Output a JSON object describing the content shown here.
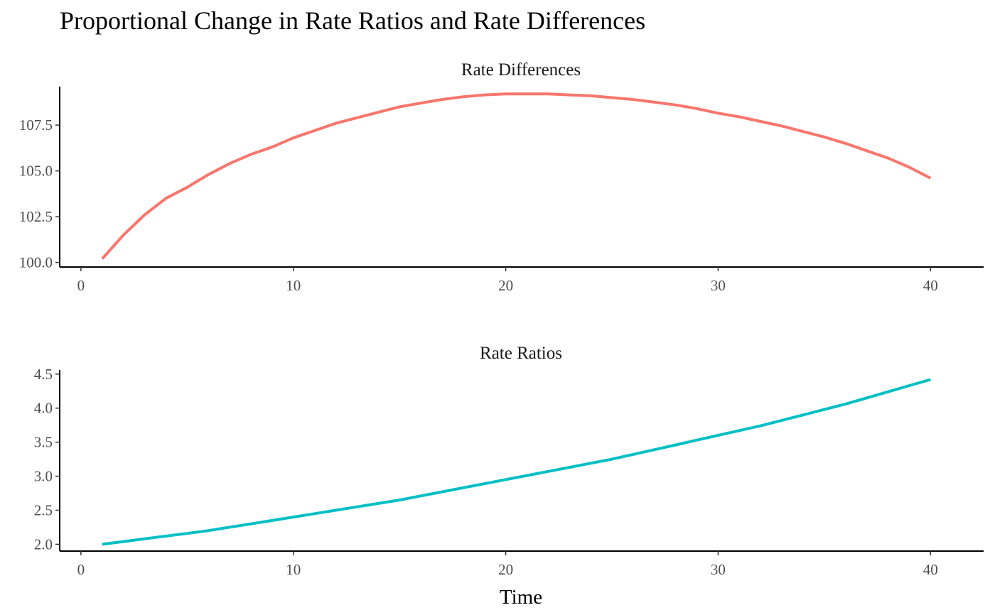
{
  "title": "Proportional Change in Rate Ratios and Rate Differences",
  "chart_data": [
    {
      "type": "line",
      "panel_title": "Rate Differences",
      "xlabel": "",
      "ylabel": "",
      "xlim": [
        -1,
        42.5
      ],
      "ylim": [
        99.75,
        109.6
      ],
      "x_ticks": [
        0,
        10,
        20,
        30,
        40
      ],
      "y_ticks": [
        100.0,
        102.5,
        105.0,
        107.5
      ],
      "y_tick_labels": [
        "100.0",
        "102.5",
        "105.0",
        "107.5"
      ],
      "grid": false,
      "series": [
        {
          "color": "#F8766D",
          "x": [
            1,
            2,
            3,
            4,
            5,
            6,
            7,
            8,
            9,
            10,
            11,
            12,
            13,
            14,
            15,
            16,
            17,
            18,
            19,
            20,
            21,
            22,
            23,
            24,
            25,
            26,
            27,
            28,
            29,
            30,
            31,
            32,
            33,
            34,
            35,
            36,
            37,
            38,
            39,
            40
          ],
          "y": [
            100.2,
            101.5,
            102.6,
            103.5,
            104.1,
            104.8,
            105.4,
            105.9,
            106.3,
            106.8,
            107.2,
            107.6,
            107.9,
            108.2,
            108.5,
            108.7,
            108.9,
            109.05,
            109.15,
            109.2,
            109.2,
            109.2,
            109.15,
            109.1,
            109.0,
            108.9,
            108.75,
            108.6,
            108.4,
            108.15,
            107.95,
            107.7,
            107.45,
            107.15,
            106.85,
            106.5,
            106.1,
            105.7,
            105.2,
            104.6
          ]
        }
      ]
    },
    {
      "type": "line",
      "panel_title": "Rate Ratios",
      "xlabel": "Time",
      "ylabel": "",
      "xlim": [
        -1,
        42.5
      ],
      "ylim": [
        1.9,
        4.56
      ],
      "x_ticks": [
        0,
        10,
        20,
        30,
        40
      ],
      "y_ticks": [
        2.0,
        2.5,
        3.0,
        3.5,
        4.0,
        4.5
      ],
      "y_tick_labels": [
        "2.0",
        "2.5",
        "3.0",
        "3.5",
        "4.0",
        "4.5"
      ],
      "grid": false,
      "series": [
        {
          "color": "#00BFC4",
          "x": [
            1,
            2,
            3,
            4,
            5,
            6,
            7,
            8,
            9,
            10,
            11,
            12,
            13,
            14,
            15,
            16,
            17,
            18,
            19,
            20,
            21,
            22,
            23,
            24,
            25,
            26,
            27,
            28,
            29,
            30,
            31,
            32,
            33,
            34,
            35,
            36,
            37,
            38,
            39,
            40
          ],
          "y": [
            2.0,
            2.04,
            2.08,
            2.12,
            2.16,
            2.2,
            2.25,
            2.3,
            2.35,
            2.4,
            2.45,
            2.5,
            2.55,
            2.6,
            2.65,
            2.71,
            2.77,
            2.83,
            2.89,
            2.95,
            3.01,
            3.07,
            3.13,
            3.19,
            3.25,
            3.32,
            3.39,
            3.46,
            3.53,
            3.6,
            3.67,
            3.74,
            3.82,
            3.9,
            3.98,
            4.06,
            4.15,
            4.24,
            4.33,
            4.42
          ]
        }
      ]
    }
  ]
}
